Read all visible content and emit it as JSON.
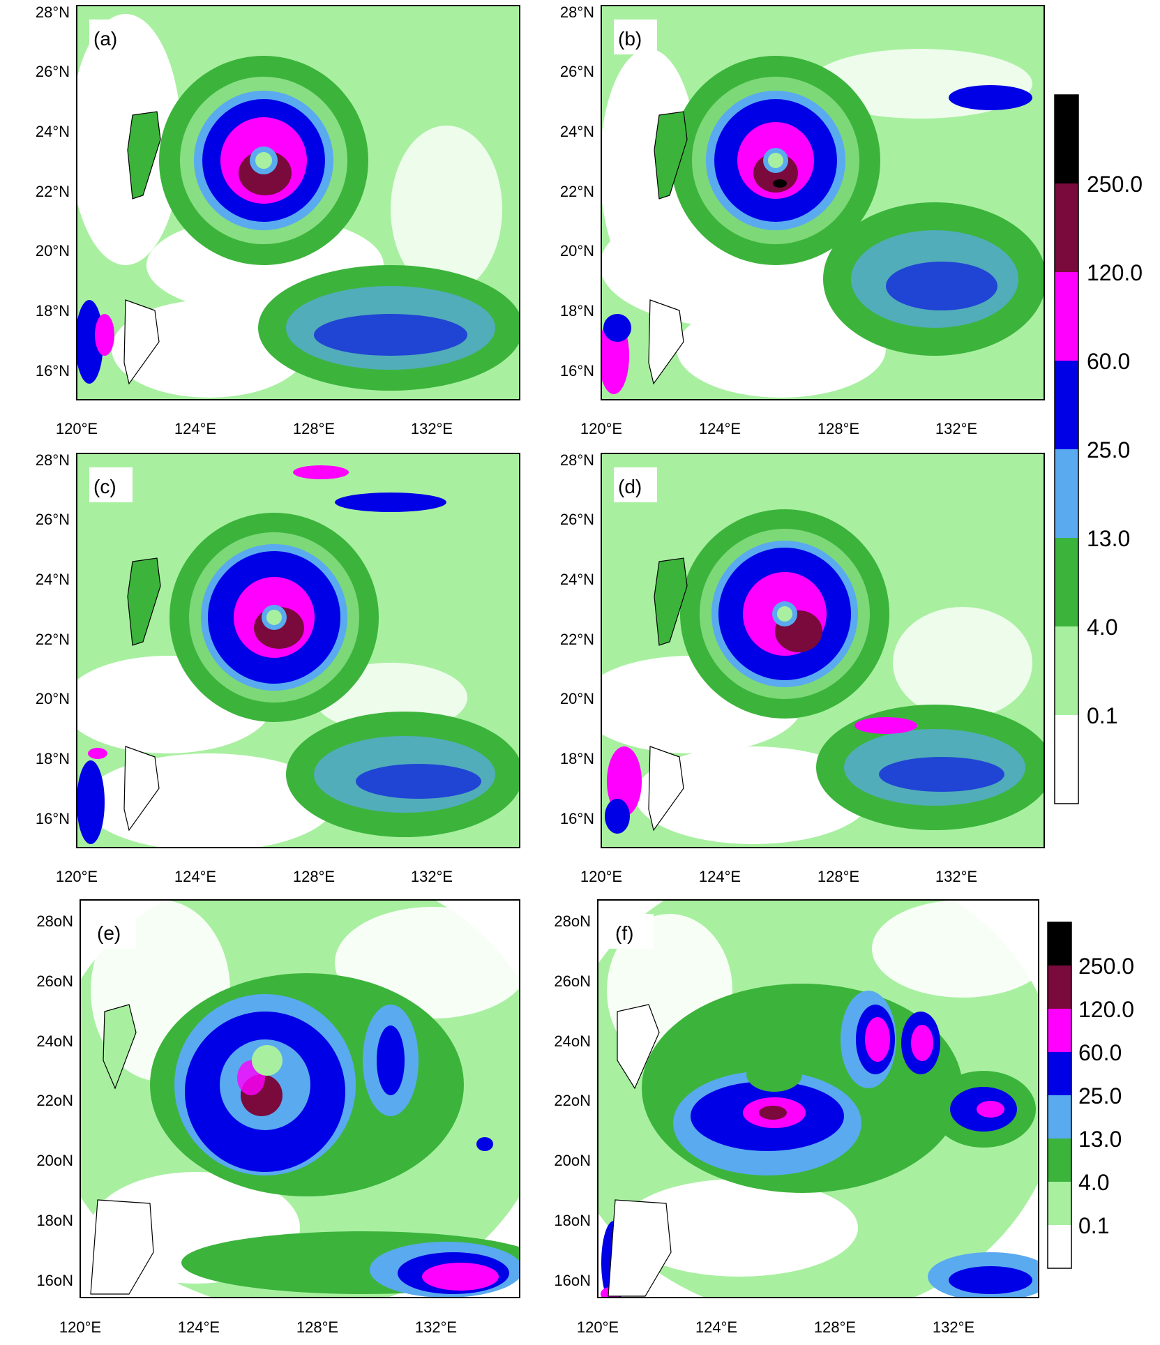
{
  "figure": {
    "colorbar_levels": [
      "250.0",
      "120.0",
      "60.0",
      "25.0",
      "13.0",
      "4.0",
      "0.1"
    ],
    "colorbar_colors": [
      "#000000",
      "#7a0a3c",
      "#ff00ff",
      "#0000e6",
      "#5aaaf0",
      "#3cb43c",
      "#a8f0a0",
      "#ffffff"
    ],
    "x_tick_labels": [
      "120°E",
      "124°E",
      "128°E",
      "132°E"
    ],
    "x_tick_values": [
      120,
      124,
      128,
      132
    ],
    "y_tick_labels_top": [
      "28°N",
      "26°N",
      "24°N",
      "22°N",
      "20°N",
      "18°N",
      "16°N"
    ],
    "y_tick_labels_bottom": [
      "28oN",
      "26oN",
      "24oN",
      "22oN",
      "20oN",
      "18oN",
      "16oN"
    ],
    "y_tick_values": [
      28,
      26,
      24,
      22,
      20,
      18,
      16
    ],
    "lon_range": [
      120,
      135
    ],
    "lat_range": [
      15,
      28.3
    ],
    "panels": [
      {
        "label": "(a)",
        "center_lon": 126.3,
        "center_lat": 22.9,
        "style": "model"
      },
      {
        "label": "(b)",
        "center_lon": 125.9,
        "center_lat": 22.9,
        "style": "model"
      },
      {
        "label": "(c)",
        "center_lon": 126.5,
        "center_lat": 22.7,
        "style": "model"
      },
      {
        "label": "(d)",
        "center_lon": 126.3,
        "center_lat": 22.8,
        "style": "model"
      },
      {
        "label": "(e)",
        "center_lon": 126.1,
        "center_lat": 23.4,
        "style": "obs"
      },
      {
        "label": "(f)",
        "center_lon": 125.8,
        "center_lat": 23.3,
        "style": "obs"
      }
    ]
  }
}
